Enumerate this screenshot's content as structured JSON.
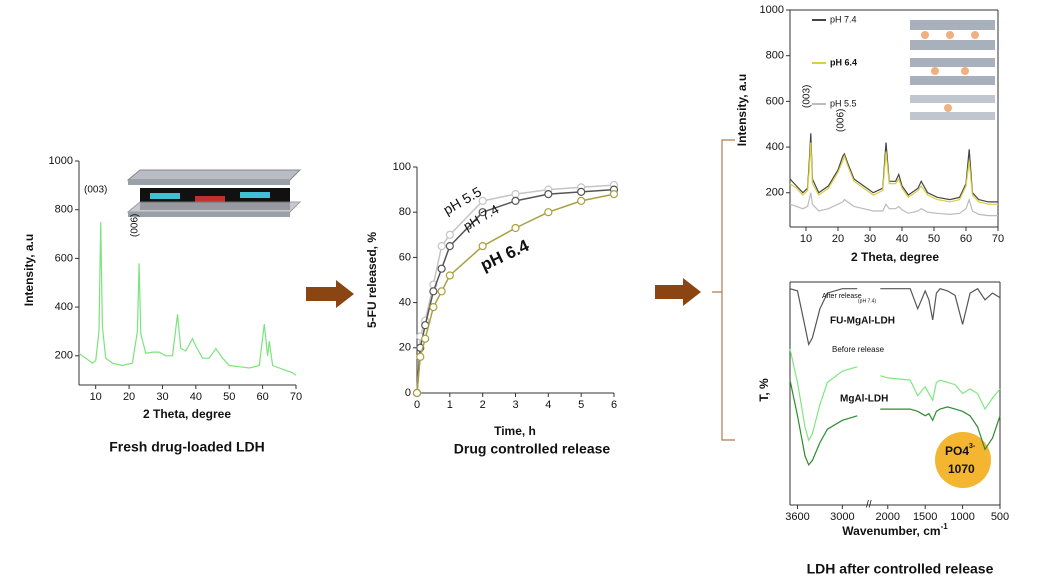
{
  "chart_data": [
    {
      "type": "line",
      "caption": "Fresh drug-loaded LDH",
      "xlabel": "2 Theta, degree",
      "ylabel": "Intensity, a.u",
      "x": [
        5,
        7,
        9,
        10,
        11,
        11.5,
        12,
        13,
        15,
        18,
        21,
        22.5,
        23,
        23.5,
        25,
        27,
        29,
        31,
        33,
        34.5,
        35.5,
        37,
        39,
        40,
        42,
        44,
        46,
        48,
        50,
        53,
        56,
        59,
        60.5,
        61.5,
        62,
        63,
        65,
        67,
        69,
        70
      ],
      "series": [
        {
          "name": null,
          "color": "#7be37b",
          "values": [
            210,
            190,
            170,
            180,
            300,
            750,
            320,
            190,
            170,
            160,
            170,
            300,
            580,
            290,
            210,
            215,
            215,
            200,
            200,
            370,
            230,
            220,
            270,
            240,
            190,
            190,
            230,
            190,
            160,
            155,
            150,
            160,
            330,
            200,
            260,
            160,
            150,
            140,
            130,
            120
          ]
        }
      ],
      "xlim": [
        5,
        70
      ],
      "xticks": [
        10,
        20,
        30,
        40,
        50,
        60,
        70
      ],
      "ylim": [
        80,
        1000
      ],
      "yticks": [
        200,
        400,
        600,
        800,
        1000
      ],
      "annotations": [
        "(003)",
        "(006)"
      ]
    },
    {
      "type": "line",
      "caption": "Drug controlled release",
      "xlabel": "Time, h",
      "ylabel": "5-FU released, %",
      "x": [
        0,
        0.1,
        0.25,
        0.5,
        0.75,
        1,
        2,
        3,
        4,
        5,
        6
      ],
      "series": [
        {
          "name": "pH 5.5",
          "color": "#c4c4c4",
          "values": [
            0,
            25,
            32,
            48,
            65,
            70,
            85,
            88,
            90,
            91,
            92
          ]
        },
        {
          "name": "pH 7.4",
          "color": "#555555",
          "values": [
            0,
            20,
            30,
            45,
            55,
            65,
            80,
            85,
            88,
            89,
            90
          ]
        },
        {
          "name": "pH 6.4",
          "color": "#a8a040",
          "values": [
            0,
            16,
            24,
            38,
            45,
            52,
            65,
            73,
            80,
            85,
            88
          ]
        }
      ],
      "markers": true,
      "xlim": [
        0,
        6
      ],
      "xticks": [
        0,
        1,
        2,
        3,
        4,
        5,
        6
      ],
      "ylim": [
        0,
        100
      ],
      "yticks": [
        0,
        20,
        40,
        60,
        80,
        100
      ],
      "annotations": []
    },
    {
      "type": "line",
      "caption": null,
      "xlabel": "2 Theta, degree",
      "ylabel": "Intensity, a.u",
      "x": [
        5,
        7,
        9,
        10.5,
        11,
        11.5,
        12,
        14,
        17,
        20,
        21.5,
        22,
        23,
        25,
        28,
        31,
        34,
        35,
        36,
        38,
        39,
        40,
        42,
        45,
        46,
        48,
        51,
        55,
        58,
        60,
        61,
        62,
        64,
        67,
        70
      ],
      "series": [
        {
          "name": "pH 7.4",
          "color": "#444444",
          "values": [
            260,
            230,
            200,
            220,
            330,
            460,
            260,
            200,
            230,
            300,
            360,
            370,
            330,
            260,
            230,
            200,
            220,
            420,
            250,
            250,
            280,
            230,
            190,
            220,
            250,
            200,
            180,
            170,
            180,
            240,
            390,
            200,
            170,
            160,
            160
          ]
        },
        {
          "name": "pH 6.4",
          "color": "#d8d040",
          "values": [
            240,
            220,
            190,
            210,
            300,
            420,
            240,
            190,
            220,
            290,
            340,
            360,
            320,
            250,
            220,
            190,
            210,
            380,
            240,
            240,
            260,
            220,
            180,
            210,
            230,
            190,
            170,
            160,
            170,
            230,
            340,
            190,
            160,
            150,
            150
          ]
        },
        {
          "name": "pH 5.5",
          "color": "#bbbbbb",
          "values": [
            150,
            140,
            130,
            140,
            170,
            200,
            150,
            120,
            130,
            150,
            160,
            170,
            160,
            140,
            130,
            120,
            120,
            150,
            130,
            130,
            140,
            125,
            110,
            120,
            130,
            115,
            110,
            105,
            110,
            130,
            170,
            120,
            105,
            100,
            100
          ]
        }
      ],
      "xlim": [
        5,
        70
      ],
      "xticks": [
        10,
        20,
        30,
        40,
        50,
        60,
        70
      ],
      "ylim": [
        50,
        1000
      ],
      "yticks": [
        200,
        400,
        600,
        800,
        1000
      ],
      "annotations": [
        "(003)",
        "(006)"
      ]
    },
    {
      "type": "line",
      "caption": "LDH after controlled release",
      "xlabel": "Wavenumber, cm",
      "xlabel_sup": "-1",
      "ylabel": "T, %",
      "x": [
        3700,
        3600,
        3500,
        3450,
        3400,
        3300,
        3200,
        3000,
        2800,
        2450,
        2100,
        2000,
        1700,
        1600,
        1500,
        1450,
        1400,
        1350,
        1300,
        1200,
        1100,
        1000,
        900,
        800,
        700,
        600,
        500
      ],
      "series": [
        {
          "name": null,
          "color": "#555555",
          "values": [
            97,
            96,
            80,
            72,
            75,
            88,
            95,
            97,
            97,
            null,
            97,
            97,
            97,
            88,
            96,
            92,
            83,
            95,
            97,
            96,
            94,
            81,
            95,
            97,
            92,
            95,
            93
          ]
        },
        {
          "name": null,
          "color": "#7ee87e",
          "values": [
            70,
            55,
            35,
            29,
            32,
            45,
            55,
            60,
            62,
            null,
            58,
            57,
            56,
            49,
            53,
            50,
            47,
            55,
            56,
            55,
            54,
            50,
            52,
            50,
            43,
            48,
            52
          ]
        },
        {
          "name": null,
          "color": "#2e8b2e",
          "values": [
            56,
            40,
            22,
            18,
            20,
            28,
            34,
            38,
            40,
            null,
            43,
            43,
            43,
            42,
            40,
            41,
            38,
            42,
            43,
            44,
            43,
            42,
            40,
            35,
            25,
            30,
            40
          ]
        }
      ],
      "xlim": [
        3700,
        500
      ],
      "xbreak": [
        2700,
        2200
      ],
      "xticks": [
        3600,
        3000,
        2000,
        1500,
        1000,
        500
      ],
      "ylim": [
        0,
        100
      ],
      "annotations": [
        "After release",
        "(pH 7.4)",
        "FU-MgAl-LDH",
        "Before release",
        "MgAl-LDH",
        "PO4",
        "3-",
        "1070"
      ]
    }
  ]
}
